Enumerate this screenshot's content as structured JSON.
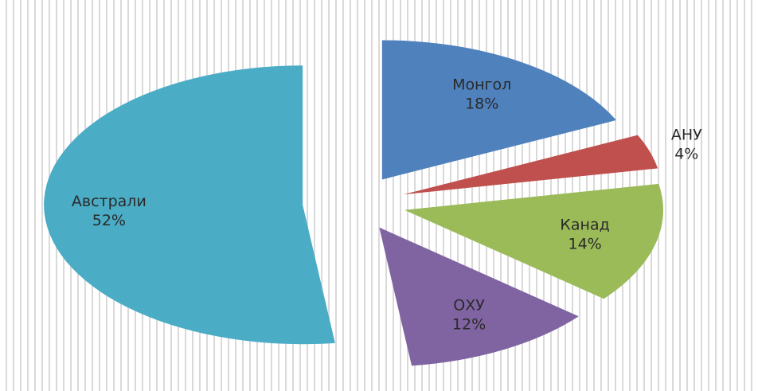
{
  "chart_data": {
    "type": "pie",
    "categories": [
      "Монгол",
      "АНУ",
      "Канад",
      "ОХУ",
      "Австрали"
    ],
    "values": [
      18,
      4,
      14,
      12,
      52
    ],
    "value_labels": [
      "18%",
      "4%",
      "14%",
      "12%",
      "52%"
    ],
    "colors": [
      "#4f81bd",
      "#c0504d",
      "#9bbb59",
      "#8064a2",
      "#4bacc6"
    ]
  }
}
